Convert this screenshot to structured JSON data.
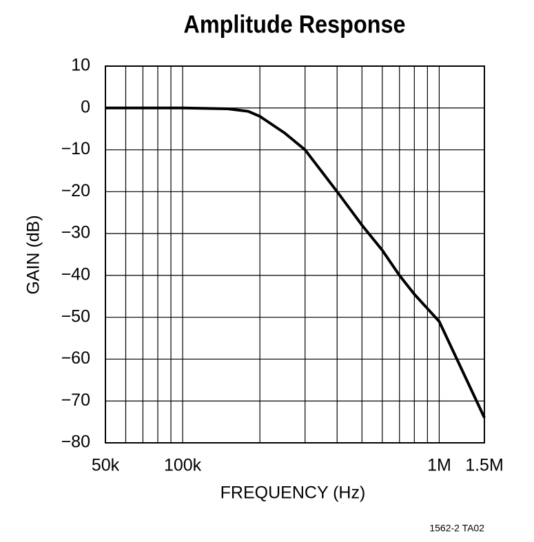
{
  "chart_data": {
    "type": "line",
    "title": "Amplitude Response",
    "x_label": "FREQUENCY (Hz)",
    "y_label": "GAIN (dB)",
    "footnote": "1562-2 TA02",
    "x_scale": "log",
    "grid": true,
    "x": [
      50000,
      100000,
      150000,
      180000,
      200000,
      250000,
      300000,
      400000,
      500000,
      600000,
      700000,
      800000,
      1000000,
      1500000
    ],
    "series": [
      {
        "color": "#000000",
        "values": [
          0,
          0,
          -0.2,
          -0.8,
          -2,
          -6,
          -10,
          -20,
          -28,
          -34,
          -40,
          -44.5,
          -51,
          -74
        ]
      }
    ],
    "xlim": [
      50000,
      1500000
    ],
    "xticks": [
      {
        "value": 50000,
        "label": "50k"
      },
      {
        "value": 100000,
        "label": "100k"
      },
      {
        "value": 1000000,
        "label": "1M"
      },
      {
        "value": 1500000,
        "label": "1.5M"
      }
    ],
    "xgrid": [
      60000,
      70000,
      80000,
      90000,
      200000,
      300000,
      400000,
      500000,
      600000,
      700000,
      800000,
      900000
    ],
    "ylim": [
      -80,
      10
    ],
    "yticks": [
      10,
      0,
      {
        "value": -10,
        "label": "−10"
      },
      {
        "value": -20,
        "label": "−20"
      },
      {
        "value": -30,
        "label": "−30"
      },
      {
        "value": -40,
        "label": "−40"
      },
      {
        "value": -50,
        "label": "−50"
      },
      {
        "value": -60,
        "label": "−60"
      },
      {
        "value": -70,
        "label": "−70"
      },
      {
        "value": -80,
        "label": "−80"
      }
    ]
  }
}
